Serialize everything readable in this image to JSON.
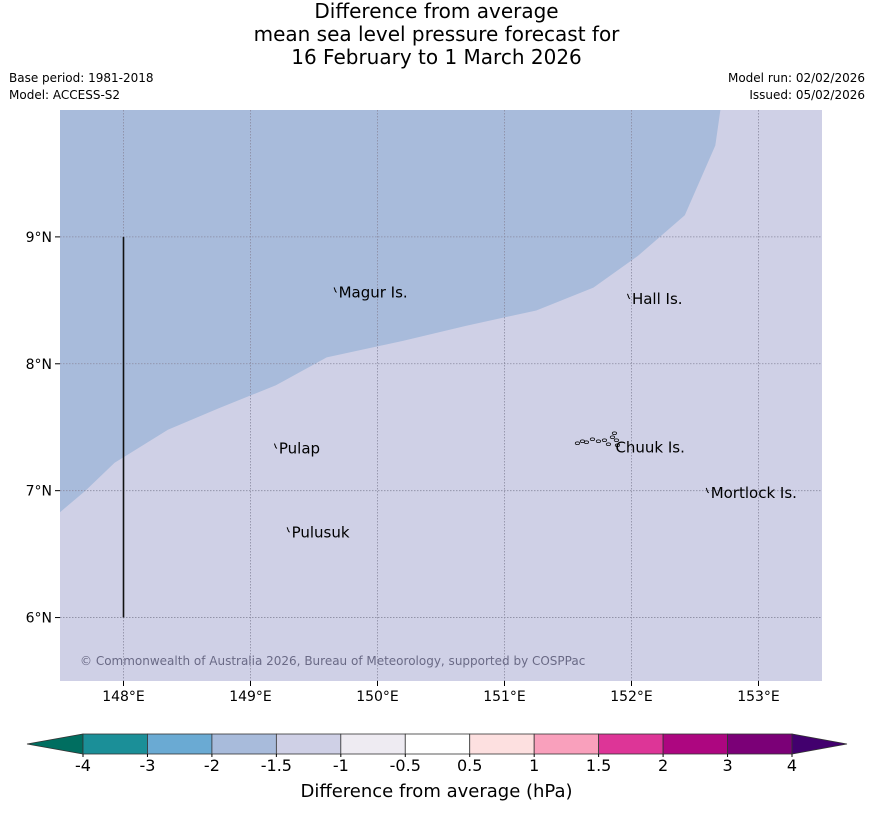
{
  "title": {
    "line1": "Difference from average",
    "line2": "mean sea level pressure forecast for",
    "line3": "16 February to 1 March 2026"
  },
  "meta": {
    "base_period": "Base period: 1981-2018",
    "model": "Model: ACCESS-S2",
    "model_run": "Model run: 02/02/2026",
    "issued": "Issued: 05/02/2026"
  },
  "map": {
    "lon_range": [
      147.5,
      153.5
    ],
    "lat_range": [
      5.5,
      10.0
    ],
    "lon_ticks": [
      {
        "value": 148,
        "label": "148°E"
      },
      {
        "value": 149,
        "label": "149°E"
      },
      {
        "value": 150,
        "label": "150°E"
      },
      {
        "value": 151,
        "label": "151°E"
      },
      {
        "value": 152,
        "label": "152°E"
      },
      {
        "value": 153,
        "label": "153°E"
      }
    ],
    "lat_ticks": [
      {
        "value": 6,
        "label": "6°N"
      },
      {
        "value": 7,
        "label": "7°N"
      },
      {
        "value": 8,
        "label": "8°N"
      },
      {
        "value": 9,
        "label": "9°N"
      }
    ],
    "boundary_line": {
      "lon": 148.0,
      "lat_from": 6.0,
      "lat_to": 9.0
    },
    "regions": [
      {
        "category": "-2 to -1.5",
        "color": "#a8bbdb"
      },
      {
        "category": "-1.5 to -1",
        "color": "#cfd0e6"
      }
    ],
    "contour_lon_lat": [
      [
        147.5,
        6.83
      ],
      [
        147.7,
        7.0
      ],
      [
        147.93,
        7.22
      ],
      [
        148.35,
        7.48
      ],
      [
        148.75,
        7.65
      ],
      [
        149.2,
        7.83
      ],
      [
        149.6,
        8.05
      ],
      [
        150.2,
        8.18
      ],
      [
        150.7,
        8.3
      ],
      [
        151.25,
        8.42
      ],
      [
        151.7,
        8.6
      ],
      [
        152.05,
        8.85
      ],
      [
        152.42,
        9.17
      ],
      [
        152.66,
        9.72
      ],
      [
        152.7,
        10.0
      ]
    ],
    "places": [
      {
        "name": "Magur Is.",
        "lon": 149.67,
        "lat": 8.57
      },
      {
        "name": "Hall Is.",
        "lon": 151.98,
        "lat": 8.52
      },
      {
        "name": "Pulap",
        "lon": 149.2,
        "lat": 7.34
      },
      {
        "name": "Chuuk Is.",
        "lon": 151.85,
        "lat": 7.35
      },
      {
        "name": "Mortlock Is.",
        "lon": 152.6,
        "lat": 6.99
      },
      {
        "name": "Pulusuk",
        "lon": 149.3,
        "lat": 6.68
      }
    ],
    "copyright": "© Commonwealth of Australia 2026, Bureau of Meteorology, supported by COSPPac"
  },
  "colorbar": {
    "title": "Difference from average (hPa)",
    "low_extend_color": "#006e60",
    "high_extend_color": "#42006e",
    "bins": [
      {
        "from": -4,
        "to": -3,
        "color": "#1b8f98"
      },
      {
        "from": -3,
        "to": -2,
        "color": "#6aaad3"
      },
      {
        "from": -2,
        "to": -1.5,
        "color": "#a8bbdb"
      },
      {
        "from": -1.5,
        "to": -1,
        "color": "#cfd0e6"
      },
      {
        "from": -1,
        "to": -0.5,
        "color": "#eeebf2"
      },
      {
        "from": -0.5,
        "to": 0.5,
        "color": "#ffffff"
      },
      {
        "from": 0.5,
        "to": 1,
        "color": "#fde0e0"
      },
      {
        "from": 1,
        "to": 1.5,
        "color": "#f9a0bc"
      },
      {
        "from": 1.5,
        "to": 2,
        "color": "#dd3597"
      },
      {
        "from": 2,
        "to": 3,
        "color": "#ad0680"
      },
      {
        "from": 3,
        "to": 4,
        "color": "#7b0077"
      }
    ],
    "tick_labels": [
      "-4",
      "-3",
      "-2",
      "-1.5",
      "-1",
      "-0.5",
      "0.5",
      "1",
      "1.5",
      "2",
      "3",
      "4"
    ]
  }
}
